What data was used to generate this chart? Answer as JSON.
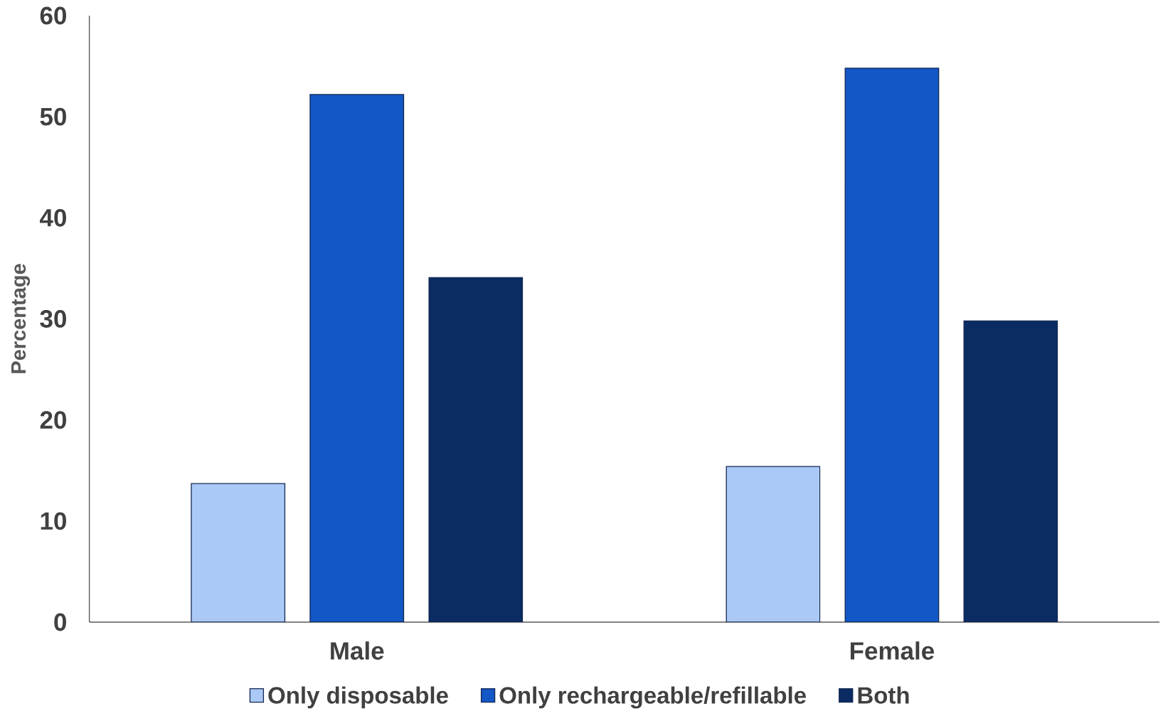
{
  "chart_data": {
    "type": "bar",
    "ylabel": "Percentage",
    "categories": [
      "Male",
      "Female"
    ],
    "series": [
      {
        "name": "Only disposable",
        "color": "#abc9f7",
        "values": [
          13.7,
          15.4
        ]
      },
      {
        "name": "Only rechargeable/refillable",
        "color": "#1257c5",
        "values": [
          52.2,
          54.8
        ]
      },
      {
        "name": "Both",
        "color": "#0a2c62",
        "values": [
          34.1,
          29.8
        ]
      }
    ],
    "ylim": [
      0,
      60
    ],
    "yticks": [
      0,
      10,
      20,
      30,
      40,
      50,
      60
    ],
    "legend": "bottom"
  }
}
